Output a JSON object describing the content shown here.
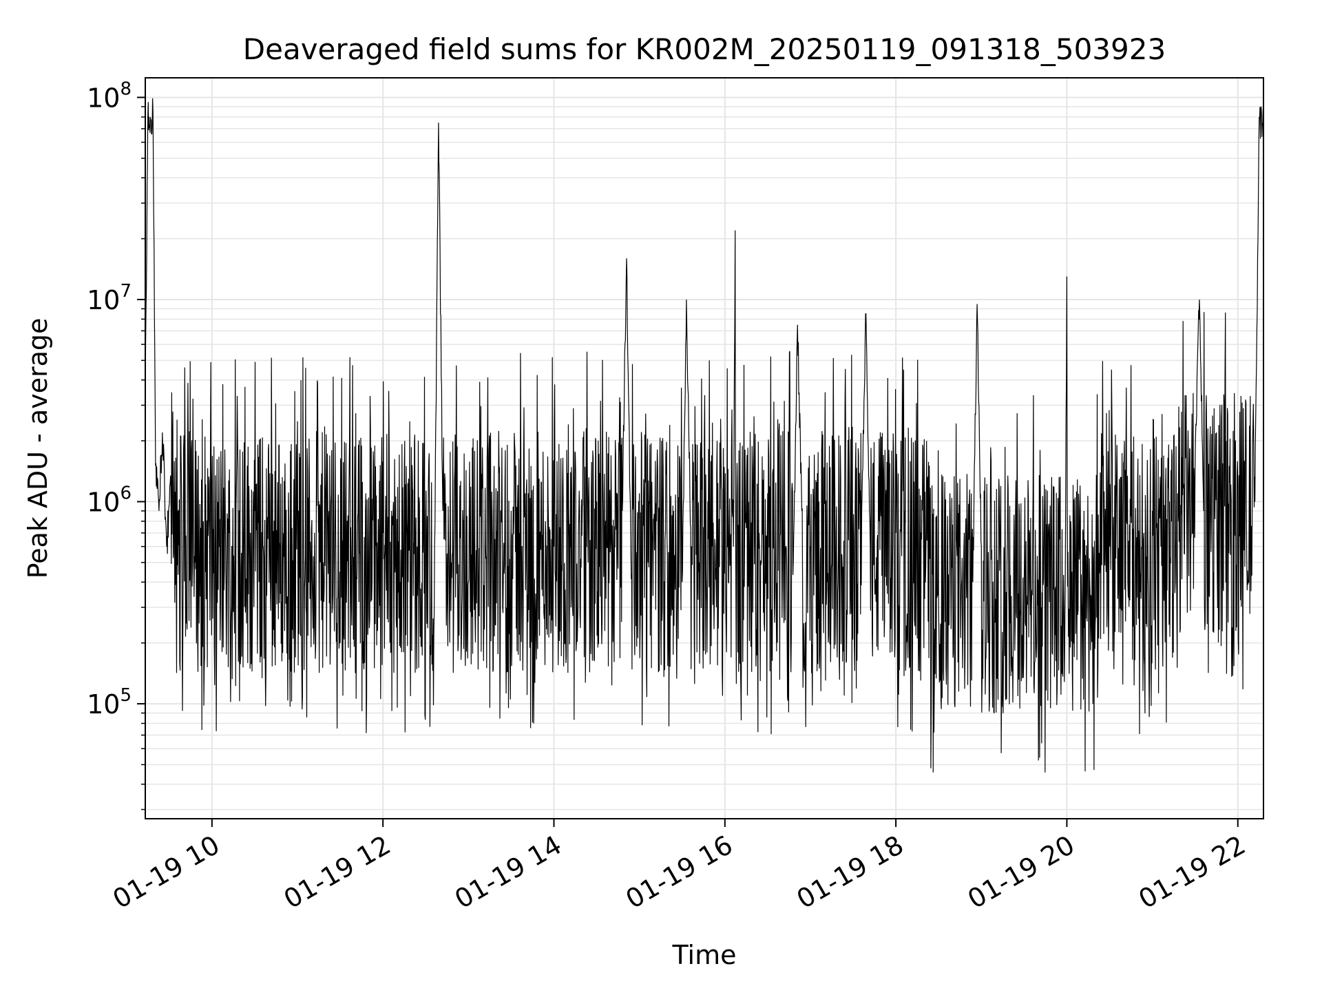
{
  "chart_data": {
    "type": "line",
    "title": "Deaveraged field sums for KR002M_20250119_091318_503923",
    "xlabel": "Time",
    "ylabel": "Peak ADU - average",
    "yscale": "log",
    "grid": true,
    "legend": "none",
    "colors": {
      "line": "#000000",
      "grid": "#e5e5e5",
      "frame": "#000000"
    },
    "xlim_hours": [
      9.22,
      22.3
    ],
    "ylim": [
      27000,
      125000000
    ],
    "x_ticks": [
      {
        "hour": 10,
        "label": "01-19 10"
      },
      {
        "hour": 12,
        "label": "01-19 12"
      },
      {
        "hour": 14,
        "label": "01-19 14"
      },
      {
        "hour": 16,
        "label": "01-19 16"
      },
      {
        "hour": 18,
        "label": "01-19 18"
      },
      {
        "hour": 20,
        "label": "01-19 20"
      },
      {
        "hour": 22,
        "label": "01-19 22"
      }
    ],
    "y_ticks": [
      {
        "value": 100000,
        "base": "10",
        "exp": "5"
      },
      {
        "value": 1000000,
        "base": "10",
        "exp": "6"
      },
      {
        "value": 10000000,
        "base": "10",
        "exp": "7"
      },
      {
        "value": 100000000,
        "base": "10",
        "exp": "8"
      }
    ],
    "series": [
      {
        "values_hours": [
          9.22,
          9.25,
          9.28,
          9.31,
          9.34,
          9.38,
          9.42,
          9.47,
          9.52,
          9.6,
          9.7,
          9.8,
          9.9,
          10.0,
          10.1,
          10.2,
          10.3,
          10.4,
          10.5,
          10.6,
          10.7,
          10.8,
          10.9,
          11.0,
          11.1,
          11.2,
          11.3,
          11.4,
          11.5,
          11.6,
          11.7,
          11.8,
          11.9,
          12.0,
          12.1,
          12.2,
          12.3,
          12.4,
          12.5,
          12.6,
          12.65,
          12.7,
          12.8,
          12.9,
          13.0,
          13.1,
          13.2,
          13.3,
          13.4,
          13.5,
          13.6,
          13.7,
          13.8,
          13.9,
          14.0,
          14.1,
          14.2,
          14.3,
          14.4,
          14.5,
          14.6,
          14.7,
          14.8,
          14.85,
          14.9,
          15.0,
          15.1,
          15.2,
          15.3,
          15.4,
          15.5,
          15.55,
          15.6,
          15.7,
          15.8,
          15.9,
          16.0,
          16.1,
          16.12,
          16.2,
          16.3,
          16.4,
          16.5,
          16.6,
          16.7,
          16.8,
          16.85,
          16.9,
          17.0,
          17.1,
          17.2,
          17.3,
          17.4,
          17.5,
          17.6,
          17.65,
          17.7,
          17.8,
          17.9,
          18.0,
          18.1,
          18.2,
          18.3,
          18.4,
          18.5,
          18.6,
          18.7,
          18.78,
          18.8,
          18.9,
          18.95,
          19.0,
          19.1,
          19.2,
          19.3,
          19.4,
          19.5,
          19.6,
          19.7,
          19.8,
          19.9,
          19.98,
          20.0,
          20.1,
          20.2,
          20.3,
          20.4,
          20.5,
          20.6,
          20.7,
          20.8,
          20.9,
          21.0,
          21.1,
          21.2,
          21.3,
          21.4,
          21.5,
          21.55,
          21.6,
          21.7,
          21.8,
          21.9,
          22.0,
          22.1,
          22.2,
          22.25,
          22.3
        ],
        "values": [
          3000000,
          80000000,
          80000000,
          85000000,
          1500000,
          900000,
          2200000,
          600000,
          1200000,
          900000,
          250000,
          500000,
          800000,
          1200000,
          300000,
          700000,
          2000000,
          400000,
          900000,
          600000,
          1500000,
          350000,
          800000,
          2500000,
          300000,
          700000,
          500000,
          1800000,
          200000,
          900000,
          600000,
          1100000,
          150000,
          700000,
          900000,
          400000,
          1300000,
          600000,
          800000,
          300000,
          75000000,
          900000,
          500000,
          1200000,
          400000,
          800000,
          600000,
          1500000,
          300000,
          900000,
          700000,
          1100000,
          400000,
          800000,
          600000,
          1200000,
          300000,
          900000,
          500000,
          1000000,
          700000,
          400000,
          900000,
          16000000,
          600000,
          1100000,
          500000,
          800000,
          650000,
          900000,
          400000,
          10000000,
          750000,
          500000,
          1000000,
          300000,
          800000,
          600000,
          22000000,
          900000,
          400000,
          700000,
          1100000,
          300000,
          800000,
          500000,
          7500000,
          900000,
          600000,
          1000000,
          400000,
          700000,
          850000,
          500000,
          900000,
          8500000,
          600000,
          800000,
          350000,
          700000,
          900000,
          400000,
          650000,
          800000,
          300000,
          600000,
          500000,
          150000,
          700000,
          400000,
          9500000,
          600000,
          300000,
          800000,
          500000,
          900000,
          400000,
          700000,
          300000,
          600000,
          800000,
          350000,
          13000000,
          500000,
          900000,
          300000,
          700000,
          600000,
          400000,
          800000,
          500000,
          700000,
          900000,
          600000,
          1000000,
          800000,
          1200000,
          1500000,
          10000000,
          900000,
          1300000,
          800000,
          1500000,
          1200000,
          900000,
          1000000,
          80000000,
          70000000
        ]
      }
    ]
  }
}
